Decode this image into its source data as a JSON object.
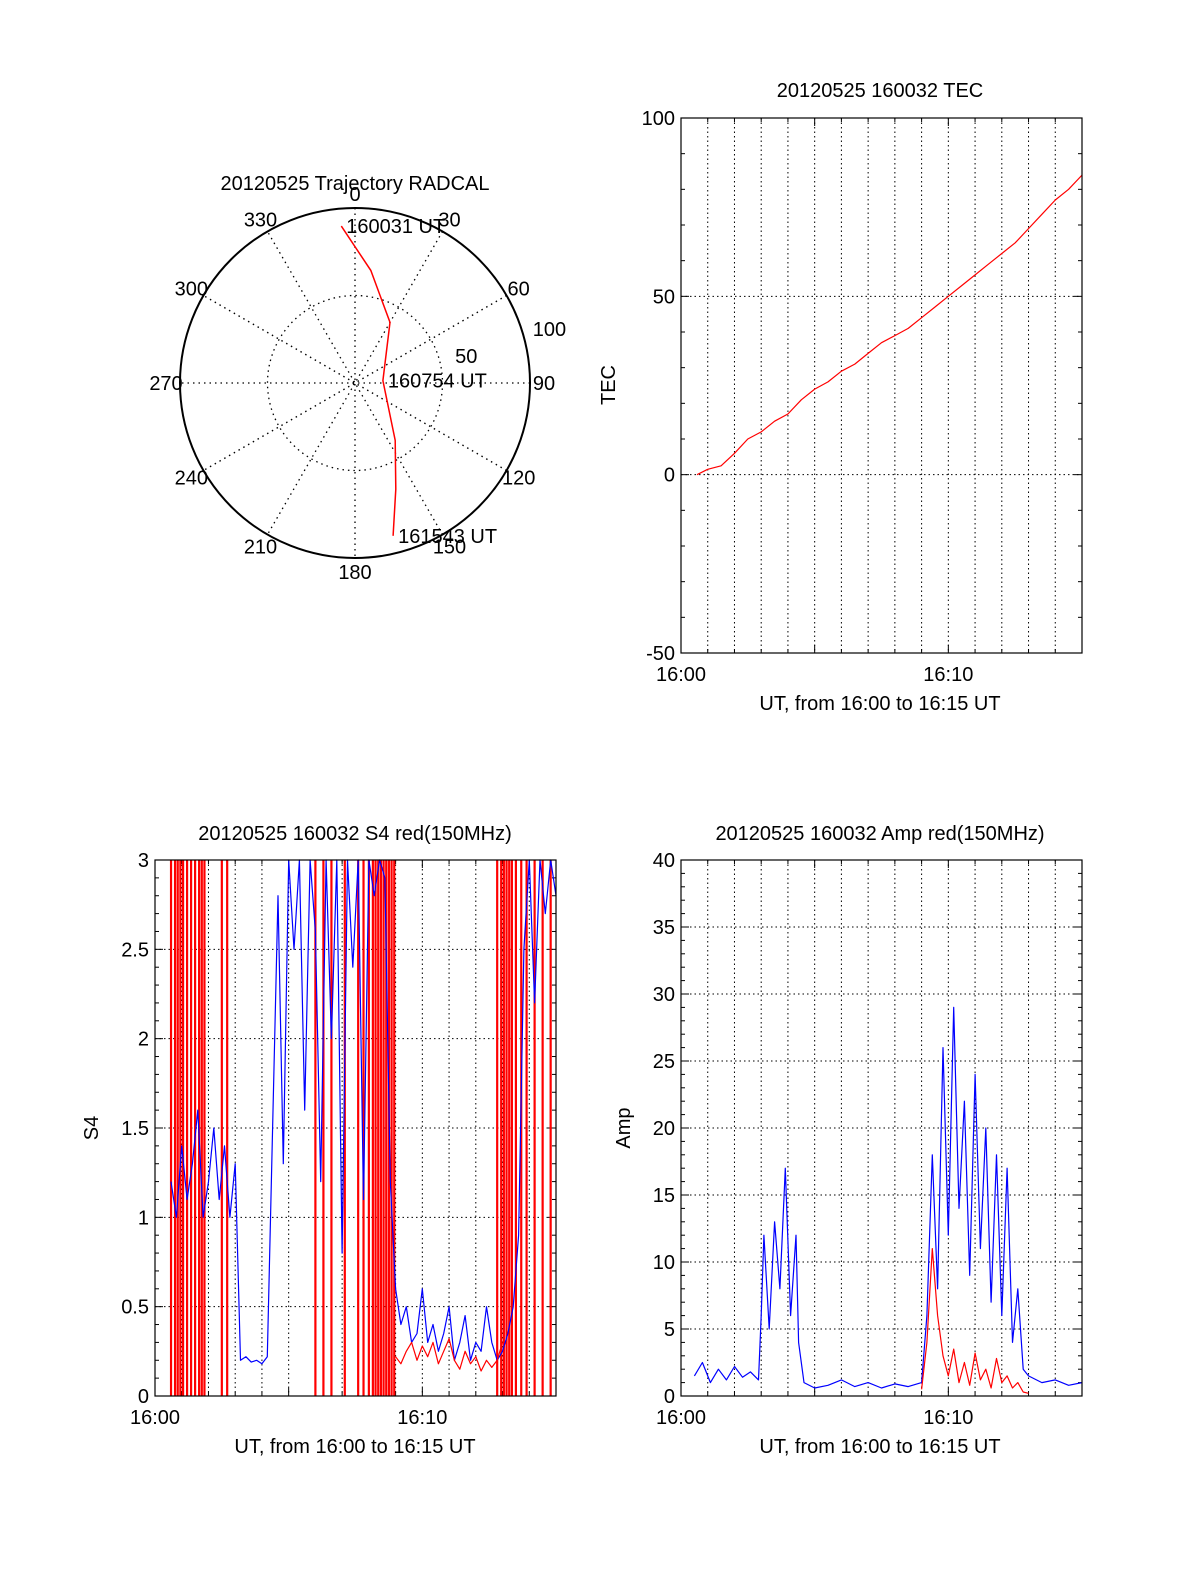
{
  "chart_data": [
    {
      "type": "polar",
      "title": "20120525 Trajectory RADCAL",
      "angle_labels": [
        "0",
        "30",
        "60",
        "90",
        "120",
        "150",
        "180",
        "210",
        "240",
        "270",
        "300",
        "330"
      ],
      "radius_labels": [
        "50",
        "100"
      ],
      "rlim": [
        0,
        100
      ],
      "grid": true,
      "series": [
        {
          "color": "#ff0000",
          "points": [
            {
              "az": 355,
              "zen": 90
            },
            {
              "az": 8,
              "zen": 65
            },
            {
              "az": 30,
              "zen": 40
            },
            {
              "az": 85,
              "zen": 16
            },
            {
              "az": 145,
              "zen": 40
            },
            {
              "az": 159,
              "zen": 65
            },
            {
              "az": 166,
              "zen": 90
            }
          ]
        }
      ],
      "annotations": [
        {
          "text": "160031 UT",
          "az": 355,
          "zen": 90
        },
        {
          "text": "160754 UT",
          "az": 85,
          "zen": 16
        },
        {
          "text": "161543 UT",
          "az": 166,
          "zen": 90
        }
      ]
    },
    {
      "type": "line",
      "title": "20120525 160032 TEC",
      "xlabel": "UT, from 16:00 to 16:15 UT",
      "ylabel": "TEC",
      "xlim_min": [
        0,
        15
      ],
      "ylim": [
        -50,
        100
      ],
      "xtick_labels": [
        {
          "x": 0,
          "label": "16:00"
        },
        {
          "x": 10,
          "label": "16:10"
        }
      ],
      "ytick_labels": [
        "-50",
        "0",
        "50",
        "100"
      ],
      "grid": true,
      "series": [
        {
          "color": "#ff0000",
          "x": [
            0.6,
            1.0,
            1.5,
            2.0,
            2.5,
            3.0,
            3.5,
            4.0,
            4.5,
            5.0,
            5.5,
            6.0,
            6.5,
            7.0,
            7.5,
            8.0,
            8.5,
            9.0,
            9.5,
            10.0,
            10.5,
            11.0,
            11.5,
            12.0,
            12.5,
            13.0,
            13.5,
            14.0,
            14.5,
            15.0
          ],
          "y": [
            0,
            1.5,
            2.5,
            6,
            10,
            12,
            15,
            17,
            21,
            24,
            26,
            29,
            31,
            34,
            37,
            39,
            41,
            44,
            47,
            50,
            53,
            56,
            59,
            62,
            65,
            69,
            73,
            77,
            80,
            84
          ]
        }
      ]
    },
    {
      "type": "line",
      "title": "20120525 160032 S4 red(150MHz)",
      "xlabel": "UT, from 16:00 to 16:15 UT",
      "ylabel": "S4",
      "xlim_min": [
        0,
        15
      ],
      "ylim": [
        0,
        3
      ],
      "xtick_labels": [
        {
          "x": 0,
          "label": "16:00"
        },
        {
          "x": 10,
          "label": "16:10"
        }
      ],
      "ytick_labels": [
        "0",
        "0.5",
        "1",
        "1.5",
        "2",
        "2.5",
        "3"
      ],
      "grid": true,
      "series": [
        {
          "color": "#0000ff",
          "x": [
            0.6,
            0.8,
            1.0,
            1.2,
            1.4,
            1.6,
            1.8,
            2.0,
            2.2,
            2.4,
            2.6,
            2.8,
            3.0,
            3.2,
            3.4,
            3.6,
            3.8,
            4.0,
            4.2,
            4.4,
            4.6,
            4.8,
            5.0,
            5.2,
            5.4,
            5.6,
            5.8,
            6.0,
            6.2,
            6.4,
            6.6,
            6.8,
            7.0,
            7.2,
            7.4,
            7.6,
            7.8,
            8.0,
            8.2,
            8.4,
            8.6,
            8.8,
            9.0,
            9.2,
            9.4,
            9.6,
            9.8,
            10.0,
            10.2,
            10.4,
            10.6,
            10.8,
            11.0,
            11.2,
            11.4,
            11.6,
            11.8,
            12.0,
            12.2,
            12.4,
            12.6,
            12.8,
            13.0,
            13.2,
            13.4,
            13.6,
            13.8,
            14.0,
            14.2,
            14.4,
            14.6,
            14.8,
            15.0
          ],
          "y": [
            1.2,
            1.0,
            1.4,
            1.1,
            1.3,
            1.6,
            1.0,
            1.2,
            1.5,
            1.1,
            1.4,
            1.0,
            1.3,
            0.2,
            0.22,
            0.19,
            0.2,
            0.18,
            0.22,
            1.5,
            2.8,
            1.3,
            3.0,
            2.5,
            3.0,
            1.6,
            3.0,
            2.6,
            1.2,
            3.0,
            2.0,
            3.0,
            0.8,
            3.0,
            2.4,
            3.0,
            1.1,
            3.0,
            2.8,
            3.0,
            2.9,
            1.2,
            0.6,
            0.4,
            0.5,
            0.3,
            0.35,
            0.6,
            0.3,
            0.4,
            0.25,
            0.35,
            0.5,
            0.2,
            0.3,
            0.45,
            0.2,
            0.3,
            0.25,
            0.5,
            0.3,
            0.2,
            0.25,
            0.35,
            0.5,
            0.9,
            2.5,
            3.0,
            2.2,
            3.0,
            2.7,
            3.0,
            2.8
          ]
        },
        {
          "color": "#ff0000",
          "x": [
            9.0,
            9.2,
            9.4,
            9.6,
            9.8,
            10.0,
            10.2,
            10.4,
            10.6,
            10.8,
            11.0,
            11.2,
            11.4,
            11.6,
            11.8,
            12.0,
            12.2,
            12.4,
            12.6,
            12.8,
            13.0
          ],
          "y": [
            0.22,
            0.18,
            0.25,
            0.3,
            0.2,
            0.28,
            0.22,
            0.3,
            0.18,
            0.25,
            0.32,
            0.2,
            0.15,
            0.25,
            0.18,
            0.22,
            0.14,
            0.2,
            0.16,
            0.2,
            0.3
          ]
        }
      ],
      "spikes": {
        "color": "#ff0000",
        "x": [
          0.6,
          0.75,
          0.85,
          0.95,
          1.05,
          1.2,
          1.35,
          1.5,
          1.65,
          1.75,
          1.85,
          2.5,
          2.7,
          6.0,
          6.3,
          6.6,
          7.1,
          7.6,
          7.8,
          8.0,
          8.15,
          8.25,
          8.35,
          8.45,
          8.55,
          8.65,
          8.75,
          8.85,
          8.95,
          12.8,
          12.95,
          13.05,
          13.15,
          13.25,
          13.35,
          13.5,
          13.7,
          13.9,
          14.2,
          14.5,
          14.8
        ],
        "y_low": 0,
        "y_high": 3
      }
    },
    {
      "type": "line",
      "title": "20120525 160032 Amp red(150MHz)",
      "xlabel": "UT, from 16:00 to 16:15 UT",
      "ylabel": "Amp",
      "xlim_min": [
        0,
        15
      ],
      "ylim": [
        0,
        40
      ],
      "xtick_labels": [
        {
          "x": 0,
          "label": "16:00"
        },
        {
          "x": 10,
          "label": "16:10"
        }
      ],
      "ytick_labels": [
        "0",
        "5",
        "10",
        "15",
        "20",
        "25",
        "30",
        "35",
        "40"
      ],
      "grid": true,
      "series": [
        {
          "color": "#0000ff",
          "x": [
            0.5,
            0.8,
            1.1,
            1.4,
            1.7,
            2.0,
            2.3,
            2.6,
            2.9,
            3.0,
            3.1,
            3.3,
            3.5,
            3.7,
            3.9,
            4.1,
            4.3,
            4.4,
            4.6,
            5.0,
            5.5,
            6.0,
            6.5,
            7.0,
            7.5,
            8.0,
            8.5,
            9.0,
            9.2,
            9.4,
            9.6,
            9.8,
            10.0,
            10.2,
            10.4,
            10.6,
            10.8,
            11.0,
            11.2,
            11.4,
            11.6,
            11.8,
            12.0,
            12.2,
            12.4,
            12.6,
            12.8,
            13.0,
            13.5,
            14.0,
            14.5,
            15.0
          ],
          "y": [
            1.5,
            2.5,
            1.0,
            2.0,
            1.2,
            2.2,
            1.4,
            1.8,
            1.2,
            6,
            12,
            5,
            13,
            8,
            17,
            6,
            12,
            4,
            1,
            0.6,
            0.8,
            1.2,
            0.7,
            1.0,
            0.6,
            0.9,
            0.7,
            1.0,
            6,
            18,
            8,
            26,
            12,
            29,
            14,
            22,
            9,
            24,
            11,
            20,
            7,
            18,
            6,
            17,
            4,
            8,
            2,
            1.5,
            1.0,
            1.2,
            0.8,
            1.0
          ]
        },
        {
          "color": "#ff0000",
          "x": [
            9.0,
            9.2,
            9.4,
            9.6,
            9.8,
            10.0,
            10.2,
            10.4,
            10.6,
            10.8,
            11.0,
            11.2,
            11.4,
            11.6,
            11.8,
            12.0,
            12.2,
            12.4,
            12.6,
            12.8,
            13.0
          ],
          "y": [
            0.5,
            4,
            11,
            6,
            3,
            1.5,
            3.5,
            1.0,
            2.5,
            0.8,
            3.2,
            1.2,
            2.0,
            0.6,
            2.8,
            1.0,
            1.5,
            0.6,
            1.0,
            0.3,
            0.2
          ]
        }
      ]
    }
  ]
}
